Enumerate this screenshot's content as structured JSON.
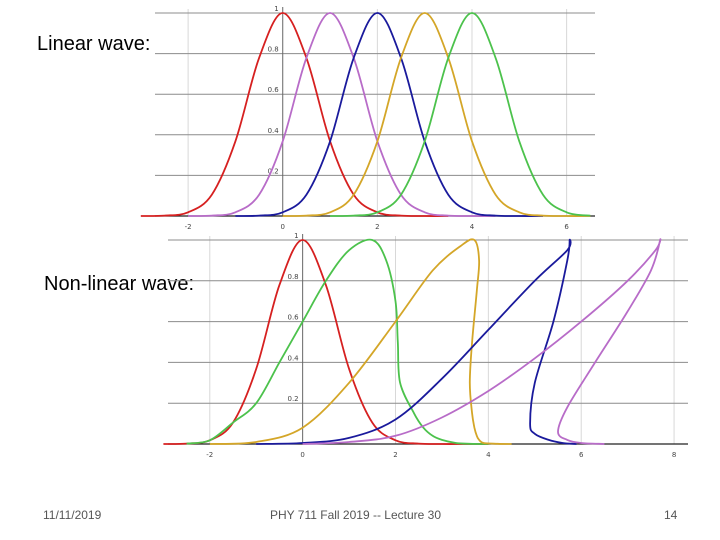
{
  "slide": {
    "linear_label": "Linear wave:",
    "nonlinear_label": "Non-linear wave:",
    "footer_date": "11/11/2019",
    "footer_title": "PHY 711  Fall 2019 -- Lecture 30",
    "footer_page": "14"
  },
  "chart_data": [
    {
      "type": "line",
      "title": "",
      "xlabel": "",
      "ylabel": "",
      "xlim": [
        -2.7,
        6.6
      ],
      "ylim": [
        0,
        1
      ],
      "x_ticks": [
        "-2",
        "0",
        "2",
        "4",
        "6"
      ],
      "x_tick_values": [
        -2,
        0,
        2,
        4,
        6
      ],
      "y_ticks": [
        "0.2",
        "0.4",
        "0.6",
        "0.8",
        "1"
      ],
      "y_tick_values": [
        0.2,
        0.4,
        0.6,
        0.8,
        1
      ],
      "grid": true,
      "series": [
        {
          "color": "#d62020",
          "x": [
            -3,
            -2.5,
            -2,
            -1.5,
            -1,
            -0.5,
            0,
            0.5,
            1,
            1.5,
            2,
            2.5,
            3,
            3.5
          ],
          "y": [
            0.0,
            0.002,
            0.018,
            0.105,
            0.368,
            0.779,
            1.0,
            0.779,
            0.368,
            0.105,
            0.018,
            0.002,
            0.0,
            0.0
          ]
        },
        {
          "color": "#b86cc8",
          "x": [
            -2,
            -1.5,
            -1,
            -0.5,
            0,
            0.5,
            1,
            1.5,
            2,
            2.5,
            3,
            3.5,
            4,
            4.5
          ],
          "y": [
            0.0,
            0.002,
            0.018,
            0.105,
            0.368,
            0.779,
            1.0,
            0.779,
            0.368,
            0.105,
            0.018,
            0.002,
            0.0,
            0.0
          ]
        },
        {
          "color": "#1a1a9c",
          "x": [
            -1,
            -0.5,
            0,
            0.5,
            1,
            1.5,
            2,
            2.5,
            3,
            3.5,
            4,
            4.5,
            5,
            5.5
          ],
          "y": [
            0.0,
            0.002,
            0.018,
            0.105,
            0.368,
            0.779,
            1.0,
            0.779,
            0.368,
            0.105,
            0.018,
            0.002,
            0.0,
            0.0
          ]
        },
        {
          "color": "#d4a628",
          "x": [
            0,
            0.5,
            1,
            1.5,
            2,
            2.5,
            3,
            3.5,
            4,
            4.5,
            5,
            5.5,
            6,
            6.5
          ],
          "y": [
            0.0,
            0.002,
            0.018,
            0.105,
            0.368,
            0.779,
            1.0,
            0.779,
            0.368,
            0.105,
            0.018,
            0.002,
            0.0,
            0.0
          ]
        },
        {
          "color": "#4cc24c",
          "x": [
            1,
            1.5,
            2,
            2.5,
            3,
            3.5,
            4,
            4.5,
            5,
            5.5,
            6,
            6.5
          ],
          "y": [
            0.0,
            0.002,
            0.018,
            0.105,
            0.368,
            0.779,
            1.0,
            0.779,
            0.368,
            0.105,
            0.018,
            0.002
          ]
        }
      ]
    },
    {
      "type": "line",
      "title": "",
      "xlabel": "",
      "ylabel": "",
      "xlim": [
        -2.9,
        8.3
      ],
      "ylim": [
        0,
        1
      ],
      "x_ticks": [
        "-2",
        "0",
        "2",
        "4",
        "6",
        "8"
      ],
      "x_tick_values": [
        -2,
        0,
        2,
        4,
        6,
        8
      ],
      "y_ticks": [
        "0.2",
        "0.4",
        "0.6",
        "0.8",
        "1"
      ],
      "y_tick_values": [
        0.2,
        0.4,
        0.6,
        0.8,
        1
      ],
      "grid": true,
      "series": [
        {
          "color": "#d62020",
          "x": [
            -3,
            -2.5,
            -2,
            -1.5,
            -1,
            -0.5,
            0,
            0.5,
            1,
            1.5,
            2,
            2.5,
            3,
            3.5,
            4
          ],
          "y": [
            0.0,
            0.002,
            0.018,
            0.105,
            0.368,
            0.779,
            1.0,
            0.779,
            0.368,
            0.105,
            0.018,
            0.002,
            0.0,
            0.0,
            0.0
          ]
        },
        {
          "color": "#4cc24c",
          "x": [
            -2.5,
            -2,
            -1.5,
            -1,
            -0.5,
            0,
            0.5,
            1,
            1.5,
            1.8,
            2.0,
            2.05,
            2.1,
            2.4,
            2.6,
            2.8,
            3.0,
            3.3,
            3.6,
            4.0
          ],
          "y": [
            0.002,
            0.018,
            0.105,
            0.2,
            0.4,
            0.6,
            0.8,
            0.95,
            1.0,
            0.9,
            0.7,
            0.5,
            0.3,
            0.15,
            0.08,
            0.04,
            0.02,
            0.005,
            0.001,
            0.0
          ]
        },
        {
          "color": "#d4a628",
          "x": [
            -2,
            -1,
            0,
            1,
            2,
            2.8,
            3.4,
            3.7,
            3.8,
            3.75,
            3.65,
            3.6,
            3.65,
            3.7,
            3.75,
            3.8,
            3.9,
            4.2,
            4.5
          ],
          "y": [
            0.0,
            0.01,
            0.08,
            0.3,
            0.6,
            0.85,
            0.97,
            1.0,
            0.9,
            0.75,
            0.5,
            0.3,
            0.15,
            0.08,
            0.04,
            0.02,
            0.005,
            0.001,
            0.0
          ]
        },
        {
          "color": "#1a1a9c",
          "x": [
            -1,
            0,
            1,
            2,
            3,
            4,
            5,
            5.7,
            5.75,
            5.7,
            5.4,
            5.0,
            4.9,
            5.0,
            5.3,
            5.6,
            5.9
          ],
          "y": [
            0.0,
            0.005,
            0.03,
            0.12,
            0.32,
            0.56,
            0.8,
            0.95,
            1.0,
            0.9,
            0.6,
            0.3,
            0.1,
            0.05,
            0.02,
            0.005,
            0.0
          ]
        },
        {
          "color": "#b86cc8",
          "x": [
            0,
            1,
            2,
            3,
            4,
            5,
            6,
            7,
            7.6,
            7.7,
            7.5,
            7.0,
            6.3,
            5.7,
            5.5,
            5.7,
            6.0,
            6.5
          ],
          "y": [
            0.0,
            0.01,
            0.04,
            0.13,
            0.26,
            0.42,
            0.6,
            0.8,
            0.95,
            1.0,
            0.85,
            0.65,
            0.4,
            0.18,
            0.06,
            0.02,
            0.005,
            0.0
          ]
        }
      ]
    }
  ]
}
